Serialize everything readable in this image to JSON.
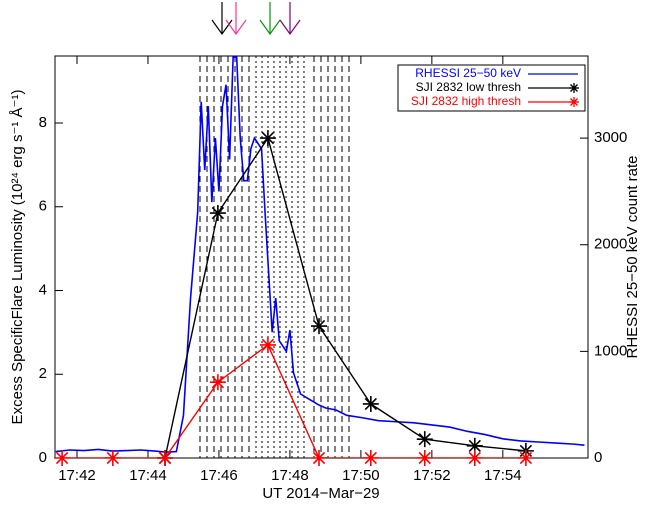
{
  "chart_data": {
    "type": "line",
    "x_label": "UT 2014−Mar−29",
    "y_label": "Excess SpecificFlare Luminosity (10²⁴ erg s⁻¹ Å⁻¹)",
    "y2_label": "RHESSI 25−50 keV count rate",
    "xlim": [
      41.38,
      56.4
    ],
    "xticks": [
      {
        "value": 42,
        "label": "17:42"
      },
      {
        "value": 44,
        "label": "17:44"
      },
      {
        "value": 46,
        "label": "17:46"
      },
      {
        "value": 48,
        "label": "17:48"
      },
      {
        "value": 50,
        "label": "17:50"
      },
      {
        "value": 52,
        "label": "17:52"
      },
      {
        "value": 54,
        "label": "17:54"
      }
    ],
    "ylim": [
      0,
      9.6
    ],
    "yticks": [
      0,
      2,
      4,
      6,
      8
    ],
    "y2lim": [
      0,
      3770
    ],
    "y2ticks": [
      0,
      1000,
      2000,
      3000
    ],
    "legend": "upper right",
    "x": [
      41.58,
      43.01,
      44.48,
      45.97,
      47.38,
      48.82,
      50.28,
      51.8,
      53.21,
      54.65
    ],
    "series": [
      {
        "name": "RHESSI 25−50 keV",
        "color": "#0000ff",
        "axis": "y2",
        "style": "step",
        "x": [
          41.4,
          41.8,
          42.2,
          42.6,
          43.0,
          43.4,
          43.8,
          44.2,
          44.5,
          44.8,
          45.0,
          45.2,
          45.4,
          45.5,
          45.6,
          45.7,
          45.8,
          45.9,
          46.0,
          46.1,
          46.2,
          46.3,
          46.4,
          46.5,
          46.6,
          46.7,
          46.8,
          46.9,
          47.0,
          47.2,
          47.3,
          47.5,
          47.6,
          47.7,
          47.8,
          47.9,
          48.0,
          48.1,
          48.2,
          48.3,
          48.5,
          48.8,
          49.0,
          49.3,
          49.6,
          50.0,
          50.5,
          51.0,
          51.5,
          52.0,
          52.5,
          53.0,
          53.5,
          54.0,
          54.5,
          55.0,
          55.5,
          56.0,
          56.3
        ],
        "values": [
          60,
          75,
          70,
          80,
          65,
          70,
          75,
          65,
          55,
          60,
          400,
          1500,
          2300,
          3340,
          2700,
          3300,
          2400,
          3000,
          2500,
          3300,
          3500,
          2800,
          3760,
          3760,
          3000,
          2600,
          2600,
          2900,
          3000,
          2900,
          2300,
          1180,
          1500,
          1100,
          1050,
          1000,
          1200,
          800,
          700,
          600,
          560,
          500,
          470,
          450,
          400,
          380,
          350,
          340,
          330,
          310,
          290,
          250,
          220,
          180,
          160,
          150,
          140,
          130,
          120
        ]
      },
      {
        "name": "SJI 2832 low thresh",
        "color": "#000000",
        "values": [
          null,
          null,
          0,
          5.85,
          7.64,
          3.15,
          1.29,
          0.45,
          0.29,
          0.17
        ]
      },
      {
        "name": "SJI 2832 high thresh",
        "color": "#ff0000",
        "values": [
          0,
          0,
          0,
          1.81,
          2.7,
          0,
          0,
          0,
          0,
          0
        ]
      }
    ]
  }
}
